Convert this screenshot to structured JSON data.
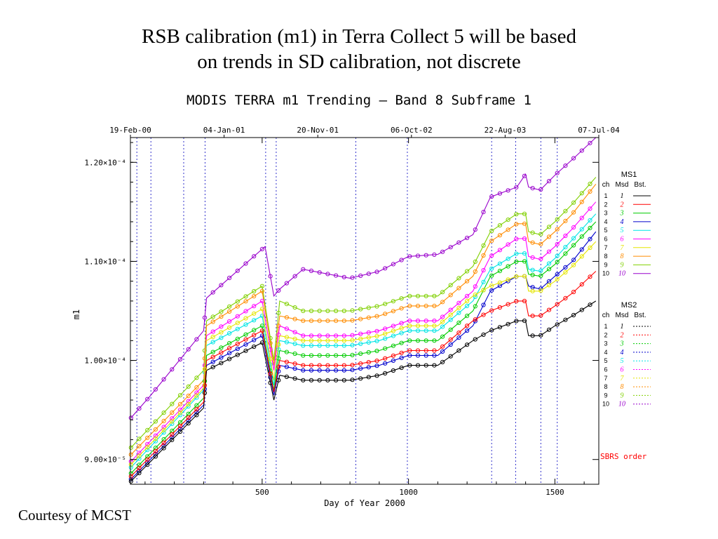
{
  "slide": {
    "title_line1": "RSB calibration (m1) in Terra Collect 5 will be based",
    "title_line2": "on trends in SD calibration, not discrete",
    "courtesy": "Courtesy of MCST"
  },
  "chart_data": {
    "type": "line",
    "title": "MODIS TERRA m1 Trending – Band 8 Subframe 1",
    "xlabel": "Day of Year 2000",
    "ylabel": "m1",
    "xlim": [
      50,
      1650
    ],
    "ylim": [
      8.75e-05,
      0.0001225
    ],
    "x_ticks": [
      500,
      1000,
      1500
    ],
    "x_tick_labels": [
      "500",
      "1000",
      "1500"
    ],
    "y_ticks": [
      9e-05,
      0.0001,
      0.00011,
      0.00012
    ],
    "y_tick_labels": [
      "9.00×10⁻⁵",
      "1.00×10⁻⁴",
      "1.10×10⁻⁴",
      "1.20×10⁻⁴"
    ],
    "top_axis": {
      "ticks": [
        50,
        370,
        690,
        1010,
        1330,
        1650
      ],
      "labels": [
        "19-Feb-00",
        "04-Jan-01",
        "20-Nov-01",
        "06-Oct-02",
        "22-Aug-03",
        "07-Jul-04"
      ]
    },
    "event_lines": [
      72,
      120,
      232,
      305,
      512,
      548,
      820,
      996,
      1284,
      1366,
      1452,
      1508
    ],
    "grid": false,
    "legend_placement": "right",
    "annotation": "SBRS order",
    "legend_groups": [
      {
        "title": "MS1",
        "header": [
          "ch",
          "Msd",
          "Bst."
        ],
        "line_style": "solid",
        "rows": [
          {
            "ch": "1",
            "msd": "1",
            "color": "#000000"
          },
          {
            "ch": "2",
            "msd": "2",
            "color": "#ff0000"
          },
          {
            "ch": "3",
            "msd": "3",
            "color": "#00cc00"
          },
          {
            "ch": "4",
            "msd": "4",
            "color": "#0000cc"
          },
          {
            "ch": "5",
            "msd": "5",
            "color": "#00e5e5"
          },
          {
            "ch": "6",
            "msd": "6",
            "color": "#ff00ff"
          },
          {
            "ch": "7",
            "msd": "7",
            "color": "#e5e500"
          },
          {
            "ch": "8",
            "msd": "8",
            "color": "#ff8c00"
          },
          {
            "ch": "9",
            "msd": "9",
            "color": "#80d000"
          },
          {
            "ch": "10",
            "msd": "10",
            "color": "#9900cc"
          }
        ]
      },
      {
        "title": "MS2",
        "header": [
          "ch",
          "Msd",
          "Bst."
        ],
        "line_style": "dotted",
        "rows": [
          {
            "ch": "1",
            "msd": "1",
            "color": "#000000"
          },
          {
            "ch": "2",
            "msd": "2",
            "color": "#ff0000"
          },
          {
            "ch": "3",
            "msd": "3",
            "color": "#00cc00"
          },
          {
            "ch": "4",
            "msd": "4",
            "color": "#0000cc"
          },
          {
            "ch": "5",
            "msd": "5",
            "color": "#00e5e5"
          },
          {
            "ch": "6",
            "msd": "6",
            "color": "#ff00ff"
          },
          {
            "ch": "7",
            "msd": "7",
            "color": "#e5e500"
          },
          {
            "ch": "8",
            "msd": "8",
            "color": "#ff8c00"
          },
          {
            "ch": "9",
            "msd": "9",
            "color": "#80d000"
          },
          {
            "ch": "10",
            "msd": "10",
            "color": "#9900cc"
          }
        ]
      }
    ],
    "series": [
      {
        "color": "#9900cc",
        "x": [
          52,
          120,
          300,
          310,
          510,
          540,
          560,
          640,
          800,
          900,
          1000,
          1100,
          1220,
          1280,
          1370,
          1400,
          1410,
          1450,
          1500,
          1560,
          1640
        ],
        "y": [
          9.42e-05,
          9.65e-05,
          0.000103,
          0.0001063,
          0.0001115,
          0.0001065,
          0.0001072,
          0.0001092,
          0.0001083,
          0.000109,
          0.0001105,
          0.0001107,
          0.0001127,
          0.0001165,
          0.0001175,
          0.0001188,
          0.0001175,
          0.0001172,
          0.0001187,
          0.0001203,
          0.0001225
        ]
      },
      {
        "color": "#80d000",
        "x": [
          52,
          300,
          310,
          500,
          540,
          560,
          640,
          800,
          900,
          1000,
          1100,
          1220,
          1280,
          1370,
          1400,
          1410,
          1450,
          1500,
          1560,
          1640
        ],
        "y": [
          9.12e-05,
          9.9e-05,
          0.000104,
          0.0001075,
          0.0001,
          0.000106,
          0.000105,
          0.000105,
          0.0001055,
          0.0001065,
          0.0001065,
          0.0001095,
          0.000113,
          0.0001148,
          0.0001148,
          0.000113,
          0.0001127,
          0.000114,
          0.0001158,
          0.0001185
        ]
      },
      {
        "color": "#ff8c00",
        "x": [
          52,
          300,
          310,
          500,
          540,
          560,
          640,
          800,
          900,
          1000,
          1100,
          1220,
          1280,
          1370,
          1400,
          1410,
          1450,
          1500,
          1560,
          1640
        ],
        "y": [
          9.05e-05,
          9.8e-05,
          0.0001035,
          0.000107,
          9.95e-05,
          0.0001045,
          0.000104,
          0.000104,
          0.0001045,
          0.0001055,
          0.0001055,
          0.0001085,
          0.000112,
          0.0001138,
          0.0001138,
          0.000112,
          0.0001117,
          0.000113,
          0.0001148,
          0.0001178
        ]
      },
      {
        "color": "#ff00ff",
        "x": [
          52,
          300,
          310,
          500,
          540,
          560,
          640,
          800,
          900,
          1000,
          1100,
          1220,
          1280,
          1370,
          1400,
          1410,
          1450,
          1500,
          1560,
          1640
        ],
        "y": [
          8.98e-05,
          9.75e-05,
          0.0001025,
          0.000106,
          9.9e-05,
          0.0001035,
          0.0001025,
          0.0001025,
          0.000103,
          0.000104,
          0.000104,
          0.000107,
          0.0001105,
          0.0001123,
          0.0001123,
          0.0001105,
          0.0001102,
          0.0001115,
          0.0001133,
          0.000116
        ]
      },
      {
        "color": "#00e5e5",
        "x": [
          52,
          300,
          310,
          500,
          540,
          560,
          640,
          800,
          900,
          1000,
          1100,
          1220,
          1280,
          1370,
          1400,
          1410,
          1450,
          1500,
          1560,
          1640
        ],
        "y": [
          8.92e-05,
          9.7e-05,
          0.0001015,
          0.0001045,
          9.75e-05,
          0.000102,
          0.0001015,
          0.0001015,
          0.000102,
          0.000103,
          0.000103,
          0.000106,
          0.0001092,
          0.0001108,
          0.0001108,
          0.0001092,
          0.000109,
          0.0001103,
          0.0001122,
          0.0001148
        ]
      },
      {
        "color": "#00cc00",
        "x": [
          52,
          300,
          310,
          500,
          540,
          560,
          640,
          800,
          900,
          1000,
          1100,
          1220,
          1280,
          1370,
          1400,
          1410,
          1450,
          1500,
          1560,
          1640
        ],
        "y": [
          8.86e-05,
          9.62e-05,
          0.0001005,
          0.0001035,
          9.7e-05,
          0.000101,
          0.0001005,
          0.0001005,
          0.000101,
          0.000102,
          0.000102,
          0.000105,
          0.0001085,
          0.00011,
          0.00011,
          0.0001087,
          0.0001085,
          0.0001097,
          0.0001115,
          0.000114
        ]
      },
      {
        "color": "#0000cc",
        "x": [
          52,
          300,
          310,
          500,
          540,
          560,
          640,
          800,
          900,
          1000,
          1100,
          1220,
          1280,
          1370,
          1400,
          1410,
          1450,
          1500,
          1560,
          1640
        ],
        "y": [
          8.8e-05,
          9.55e-05,
          9.95e-05,
          0.0001025,
          9.65e-05,
          9.95e-05,
          9.9e-05,
          9.9e-05,
          9.95e-05,
          0.0001005,
          0.0001005,
          0.0001035,
          0.000107,
          0.0001085,
          0.0001085,
          0.0001075,
          0.0001072,
          0.0001085,
          0.00011,
          0.000113
        ]
      },
      {
        "color": "#000000",
        "x": [
          52,
          300,
          310,
          500,
          540,
          560,
          640,
          800,
          900,
          1000,
          1100,
          1220,
          1280,
          1370,
          1400,
          1410,
          1450,
          1500,
          1560,
          1640
        ],
        "y": [
          8.78e-05,
          9.52e-05,
          9.9e-05,
          0.0001018,
          9.6e-05,
          9.85e-05,
          9.8e-05,
          9.8e-05,
          9.85e-05,
          9.95e-05,
          9.95e-05,
          0.000102,
          0.000103,
          0.000104,
          0.000104,
          0.0001025,
          0.0001025,
          0.0001035,
          0.0001045,
          0.000106
        ]
      },
      {
        "color": "#ff0000",
        "x": [
          52,
          300,
          310,
          500,
          540,
          560,
          640,
          800,
          900,
          1000,
          1100,
          1220,
          1280,
          1370,
          1400,
          1410,
          1450,
          1500,
          1560,
          1640
        ],
        "y": [
          8.83e-05,
          9.58e-05,
          0.0001,
          0.000103,
          9.68e-05,
          0.0001,
          9.95e-05,
          9.95e-05,
          0.0001,
          0.000101,
          0.000101,
          0.000104,
          0.000105,
          0.000106,
          0.000106,
          0.0001045,
          0.0001045,
          0.0001055,
          0.0001068,
          0.000109
        ]
      },
      {
        "color": "#e5e500",
        "x": [
          52,
          300,
          310,
          500,
          540,
          560,
          640,
          800,
          900,
          1000,
          1100,
          1220,
          1280,
          1370,
          1400,
          1410,
          1450,
          1500,
          1560,
          1640
        ],
        "y": [
          8.95e-05,
          9.72e-05,
          0.000102,
          0.0001052,
          9.8e-05,
          0.0001025,
          0.000102,
          0.000102,
          0.0001025,
          0.0001035,
          0.0001035,
          0.0001065,
          0.0001075,
          0.0001085,
          0.0001085,
          0.000107,
          0.000107,
          0.000108,
          0.0001095,
          0.000112
        ]
      }
    ]
  }
}
